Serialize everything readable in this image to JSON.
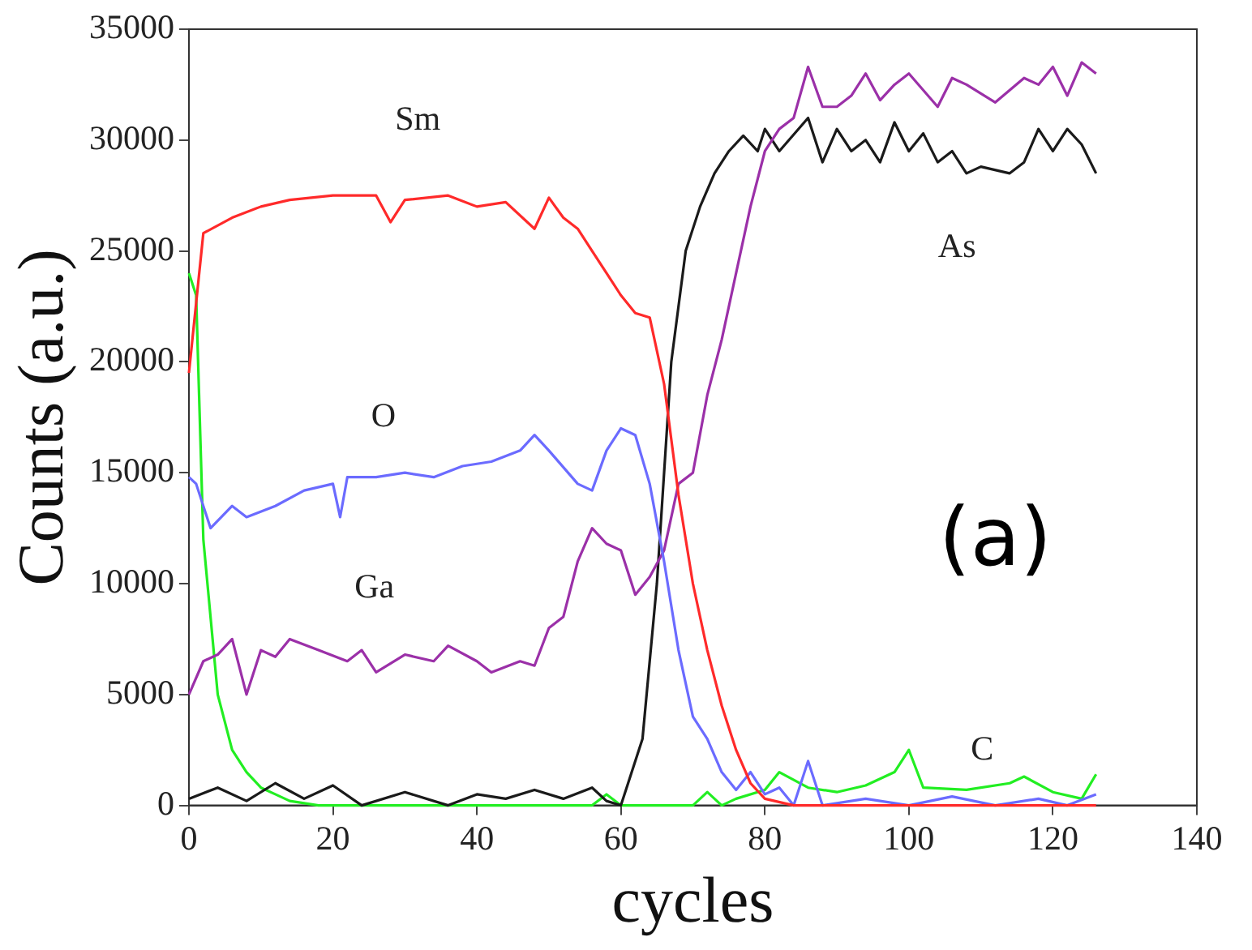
{
  "chart_data": {
    "type": "line",
    "xlabel": "cycles",
    "ylabel": "Counts (a.u.)",
    "annotations": [
      "(a)"
    ],
    "xlim": [
      0,
      140
    ],
    "xticks": [
      0,
      20,
      40,
      60,
      80,
      100,
      120,
      140
    ],
    "ylim": [
      0,
      35000
    ],
    "yticks": [
      0,
      5000,
      10000,
      15000,
      20000,
      25000,
      30000,
      35000
    ],
    "grid": false,
    "legend": false,
    "marker": "none",
    "line_style": "solid",
    "series": [
      {
        "name": "Sm",
        "color": "#ff2a2a",
        "x": [
          0,
          2,
          6,
          10,
          14,
          20,
          26,
          28,
          30,
          36,
          40,
          44,
          48,
          50,
          52,
          54,
          56,
          58,
          60,
          62,
          64,
          66,
          68,
          70,
          72,
          74,
          76,
          78,
          80,
          84,
          90,
          100,
          110,
          120,
          126
        ],
        "values": [
          19500,
          25800,
          26500,
          27000,
          27300,
          27500,
          27500,
          26300,
          27300,
          27500,
          27000,
          27200,
          26000,
          27400,
          26500,
          26000,
          25000,
          24000,
          23000,
          22200,
          22000,
          19000,
          14000,
          10000,
          7000,
          4500,
          2500,
          1000,
          300,
          0,
          0,
          0,
          0,
          0,
          0
        ]
      },
      {
        "name": "O",
        "color": "#6b6bff",
        "x": [
          0,
          1,
          3,
          6,
          8,
          12,
          16,
          20,
          21,
          22,
          26,
          30,
          34,
          38,
          42,
          46,
          48,
          50,
          54,
          56,
          58,
          60,
          62,
          64,
          66,
          68,
          70,
          72,
          74,
          76,
          78,
          80,
          82,
          84,
          86,
          88,
          94,
          100,
          106,
          112,
          118,
          122,
          126
        ],
        "values": [
          14800,
          14500,
          12500,
          13500,
          13000,
          13500,
          14200,
          14500,
          13000,
          14800,
          14800,
          15000,
          14800,
          15300,
          15500,
          16000,
          16700,
          16000,
          14500,
          14200,
          16000,
          17000,
          16700,
          14500,
          11000,
          7000,
          4000,
          3000,
          1500,
          700,
          1500,
          500,
          800,
          0,
          2000,
          0,
          300,
          0,
          400,
          0,
          300,
          0,
          500
        ]
      },
      {
        "name": "Ga",
        "color": "#9b30a8",
        "x": [
          0,
          2,
          4,
          6,
          8,
          10,
          12,
          14,
          18,
          22,
          24,
          26,
          30,
          34,
          36,
          40,
          42,
          46,
          48,
          50,
          52,
          54,
          56,
          58,
          60,
          62,
          64,
          66,
          68,
          70,
          72,
          74,
          76,
          78,
          80,
          82,
          84,
          86,
          88,
          90,
          92,
          94,
          96,
          98,
          100,
          104,
          106,
          108,
          112,
          116,
          118,
          120,
          122,
          124,
          126
        ],
        "values": [
          5000,
          6500,
          6800,
          7500,
          5000,
          7000,
          6700,
          7500,
          7000,
          6500,
          7000,
          6000,
          6800,
          6500,
          7200,
          6500,
          6000,
          6500,
          6300,
          8000,
          8500,
          11000,
          12500,
          11800,
          11500,
          9500,
          10300,
          11500,
          14500,
          15000,
          18500,
          21000,
          24000,
          27000,
          29500,
          30500,
          31000,
          33300,
          31500,
          31500,
          32000,
          33000,
          31800,
          32500,
          33000,
          31500,
          32800,
          32500,
          31700,
          32800,
          32500,
          33300,
          32000,
          33500,
          33000
        ]
      },
      {
        "name": "As",
        "color": "#1a1a1a",
        "x": [
          0,
          4,
          8,
          12,
          16,
          20,
          24,
          30,
          36,
          40,
          44,
          48,
          52,
          56,
          58,
          60,
          61,
          63,
          65,
          67,
          69,
          71,
          73,
          75,
          77,
          79,
          80,
          82,
          86,
          88,
          90,
          92,
          94,
          96,
          98,
          100,
          102,
          104,
          106,
          108,
          110,
          114,
          116,
          118,
          120,
          122,
          124,
          126
        ],
        "values": [
          300,
          800,
          200,
          1000,
          300,
          900,
          0,
          600,
          0,
          500,
          300,
          700,
          300,
          800,
          200,
          0,
          1000,
          3000,
          10000,
          20000,
          25000,
          27000,
          28500,
          29500,
          30200,
          29500,
          30500,
          29500,
          31000,
          29000,
          30500,
          29500,
          30000,
          29000,
          30800,
          29500,
          30300,
          29000,
          29500,
          28500,
          28800,
          28500,
          29000,
          30500,
          29500,
          30500,
          29800,
          28500
        ]
      },
      {
        "name": "C",
        "color": "#22ee22",
        "x": [
          0,
          1,
          2,
          4,
          6,
          8,
          10,
          12,
          14,
          18,
          30,
          40,
          50,
          56,
          58,
          60,
          66,
          70,
          72,
          74,
          76,
          80,
          82,
          86,
          90,
          94,
          98,
          100,
          102,
          108,
          114,
          116,
          120,
          124,
          126
        ],
        "values": [
          24000,
          23000,
          12000,
          5000,
          2500,
          1500,
          800,
          500,
          200,
          0,
          0,
          0,
          0,
          0,
          500,
          0,
          0,
          0,
          600,
          0,
          300,
          700,
          1500,
          800,
          600,
          900,
          1500,
          2500,
          800,
          700,
          1000,
          1300,
          600,
          300,
          1400
        ]
      }
    ]
  }
}
